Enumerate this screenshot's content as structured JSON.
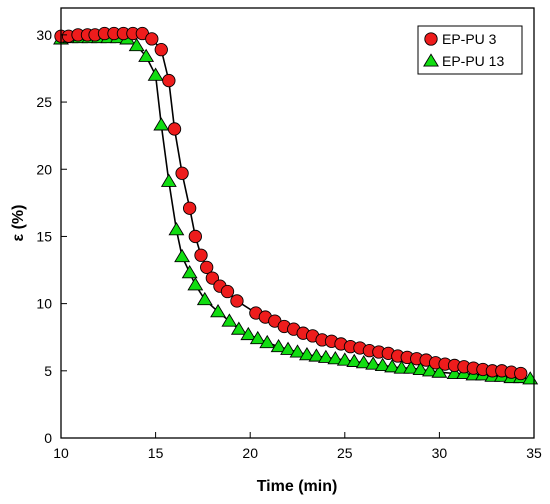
{
  "chart_data": {
    "type": "scatter",
    "title": "",
    "xlabel": "Time (min)",
    "ylabel": "ε (%)",
    "xlim": [
      10,
      35
    ],
    "ylim": [
      0,
      32
    ],
    "xticks": [
      10,
      15,
      20,
      25,
      30,
      35
    ],
    "yticks": [
      0,
      5,
      10,
      15,
      20,
      25,
      30
    ],
    "grid": false,
    "legend_position": "top-right",
    "series": [
      {
        "name": "EP-PU 3",
        "marker": "circle",
        "color": "#ee1c1c",
        "x": [
          10.0,
          10.4,
          10.9,
          11.4,
          11.8,
          12.3,
          12.8,
          13.3,
          13.8,
          14.3,
          14.8,
          15.3,
          15.7,
          16.0,
          16.4,
          16.8,
          17.1,
          17.4,
          17.7,
          18.0,
          18.4,
          18.8,
          19.3,
          20.3,
          20.8,
          21.3,
          21.8,
          22.3,
          22.8,
          23.3,
          23.8,
          24.3,
          24.8,
          25.3,
          25.8,
          26.3,
          26.8,
          27.3,
          27.8,
          28.3,
          28.8,
          29.3,
          29.8,
          30.3,
          30.8,
          31.3,
          31.8,
          32.3,
          32.8,
          33.3,
          33.8,
          34.3
        ],
        "y": [
          29.9,
          29.9,
          30.0,
          30.0,
          30.0,
          30.1,
          30.1,
          30.1,
          30.1,
          30.1,
          29.7,
          28.9,
          26.6,
          23.0,
          19.7,
          17.1,
          15.0,
          13.6,
          12.7,
          11.9,
          11.3,
          10.9,
          10.2,
          9.3,
          9.0,
          8.7,
          8.3,
          8.1,
          7.8,
          7.6,
          7.3,
          7.2,
          7.0,
          6.8,
          6.7,
          6.5,
          6.4,
          6.3,
          6.1,
          6.0,
          5.9,
          5.8,
          5.6,
          5.5,
          5.4,
          5.3,
          5.2,
          5.1,
          5.0,
          5.0,
          4.9,
          4.8
        ]
      },
      {
        "name": "EP-PU 13",
        "marker": "triangle",
        "color": "#11dd11",
        "x": [
          10.0,
          10.5,
          11.0,
          11.5,
          12.0,
          12.5,
          13.0,
          13.5,
          14.0,
          14.5,
          15.0,
          15.3,
          15.7,
          16.1,
          16.4,
          16.8,
          17.1,
          17.6,
          18.3,
          18.9,
          19.4,
          19.9,
          20.4,
          20.9,
          21.5,
          22.0,
          22.5,
          23.0,
          23.5,
          24.0,
          24.5,
          25.0,
          25.5,
          26.0,
          26.5,
          27.0,
          27.5,
          28.0,
          28.5,
          29.0,
          29.5,
          30.0,
          30.8,
          31.3,
          31.8,
          32.3,
          32.8,
          33.3,
          33.8,
          34.3,
          34.8
        ],
        "y": [
          29.7,
          29.8,
          29.8,
          29.8,
          29.8,
          29.8,
          29.8,
          29.7,
          29.2,
          28.4,
          27.0,
          23.3,
          19.1,
          15.5,
          13.5,
          12.3,
          11.4,
          10.3,
          9.4,
          8.7,
          8.1,
          7.7,
          7.4,
          7.1,
          6.8,
          6.6,
          6.4,
          6.2,
          6.1,
          6.0,
          5.9,
          5.8,
          5.7,
          5.6,
          5.5,
          5.4,
          5.3,
          5.2,
          5.2,
          5.1,
          5.0,
          4.9,
          4.8,
          4.8,
          4.7,
          4.7,
          4.6,
          4.6,
          4.5,
          4.5,
          4.4
        ]
      }
    ]
  }
}
